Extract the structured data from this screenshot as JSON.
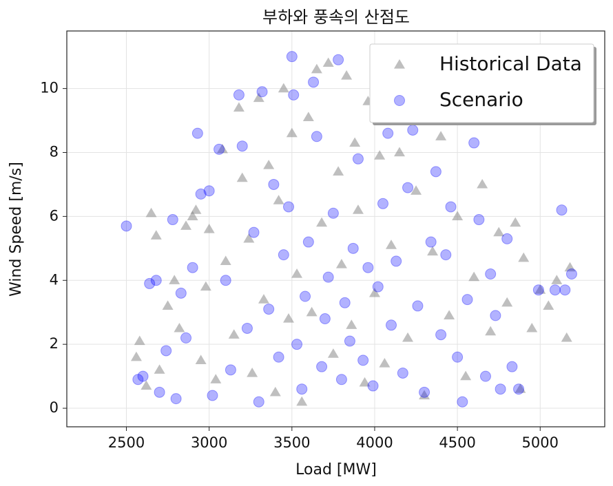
{
  "chart_data": {
    "type": "scatter",
    "title": "부하와 풍속의 산점도",
    "xlabel": "Load [MW]",
    "ylabel": "Wind Speed [m/s]",
    "xlim": [
      2140,
      5390
    ],
    "ylim": [
      -0.58,
      11.8
    ],
    "xticks": [
      2500,
      3000,
      3500,
      4000,
      4500,
      5000
    ],
    "yticks": [
      0,
      2,
      4,
      6,
      8,
      10
    ],
    "grid": true,
    "legend": "upper right",
    "series": [
      {
        "name": "Historical Data",
        "color": "#808080",
        "marker": "triangle",
        "x": [
          2560,
          2580,
          2620,
          2650,
          2680,
          2700,
          2750,
          2790,
          2820,
          2860,
          2900,
          2920,
          2950,
          2980,
          3000,
          3040,
          3080,
          3100,
          3150,
          3180,
          3200,
          3240,
          3260,
          3300,
          3330,
          3360,
          3400,
          3420,
          3450,
          3480,
          3500,
          3530,
          3560,
          3600,
          3620,
          3650,
          3680,
          3720,
          3750,
          3780,
          3800,
          3830,
          3860,
          3880,
          3900,
          3940,
          3960,
          4000,
          4030,
          4060,
          4100,
          4150,
          4200,
          4250,
          4300,
          4350,
          4400,
          4450,
          4500,
          4550,
          4600,
          4650,
          4700,
          4750,
          4800,
          4850,
          4880,
          4900,
          4950,
          5000,
          5050,
          5100,
          5160,
          5180
        ],
        "values": [
          1.6,
          2.1,
          0.7,
          6.1,
          5.4,
          1.2,
          3.2,
          4.0,
          2.5,
          5.7,
          6.0,
          6.2,
          1.5,
          3.8,
          5.6,
          0.9,
          8.1,
          4.6,
          2.3,
          9.4,
          7.2,
          5.3,
          1.1,
          9.7,
          3.4,
          7.6,
          0.5,
          6.5,
          10.0,
          2.8,
          8.6,
          4.2,
          0.2,
          9.1,
          3.0,
          10.6,
          5.8,
          10.8,
          1.7,
          7.4,
          4.5,
          10.4,
          2.6,
          8.3,
          6.2,
          0.8,
          9.6,
          3.6,
          7.9,
          1.4,
          5.1,
          8.0,
          2.2,
          6.8,
          0.4,
          4.9,
          8.5,
          2.9,
          6.0,
          1.0,
          4.1,
          7.0,
          2.4,
          5.5,
          3.3,
          5.8,
          0.6,
          4.7,
          2.5,
          3.7,
          3.2,
          4.0,
          2.2,
          4.4
        ]
      },
      {
        "name": "Scenario",
        "color": "#0000ff",
        "marker": "circle",
        "x": [
          2500,
          2570,
          2600,
          2640,
          2680,
          2700,
          2740,
          2780,
          2800,
          2830,
          2860,
          2900,
          2930,
          2950,
          3000,
          3020,
          3060,
          3100,
          3130,
          3180,
          3200,
          3230,
          3270,
          3300,
          3320,
          3360,
          3390,
          3420,
          3450,
          3480,
          3500,
          3510,
          3530,
          3560,
          3580,
          3600,
          3630,
          3650,
          3680,
          3700,
          3720,
          3750,
          3780,
          3800,
          3820,
          3850,
          3870,
          3900,
          3930,
          3960,
          3990,
          4020,
          4050,
          4080,
          4100,
          4130,
          4170,
          4200,
          4230,
          4260,
          4300,
          4340,
          4370,
          4400,
          4430,
          4460,
          4500,
          4530,
          4560,
          4600,
          4630,
          4670,
          4700,
          4730,
          4760,
          4800,
          4830,
          4870,
          4990,
          5090,
          5130,
          5150,
          5190
        ],
        "values": [
          5.7,
          0.9,
          1.0,
          3.9,
          4.0,
          0.5,
          1.8,
          5.9,
          0.3,
          3.6,
          2.2,
          4.4,
          8.6,
          6.7,
          6.8,
          0.4,
          8.1,
          4.0,
          1.2,
          9.8,
          8.2,
          2.5,
          5.5,
          0.2,
          9.9,
          3.1,
          7.0,
          1.6,
          4.8,
          6.3,
          11.0,
          9.8,
          2.0,
          0.6,
          3.5,
          5.2,
          10.2,
          8.5,
          1.3,
          2.8,
          4.1,
          6.1,
          10.9,
          0.9,
          3.3,
          2.1,
          5.0,
          7.8,
          1.5,
          4.4,
          0.7,
          3.8,
          6.4,
          8.6,
          2.6,
          4.6,
          1.1,
          6.9,
          8.7,
          3.2,
          0.5,
          5.2,
          7.4,
          2.3,
          4.8,
          6.3,
          1.6,
          0.2,
          3.4,
          8.3,
          5.9,
          1.0,
          4.2,
          2.9,
          0.6,
          5.3,
          1.3,
          0.6,
          3.7,
          3.7,
          6.2,
          3.7,
          4.2
        ]
      }
    ]
  }
}
